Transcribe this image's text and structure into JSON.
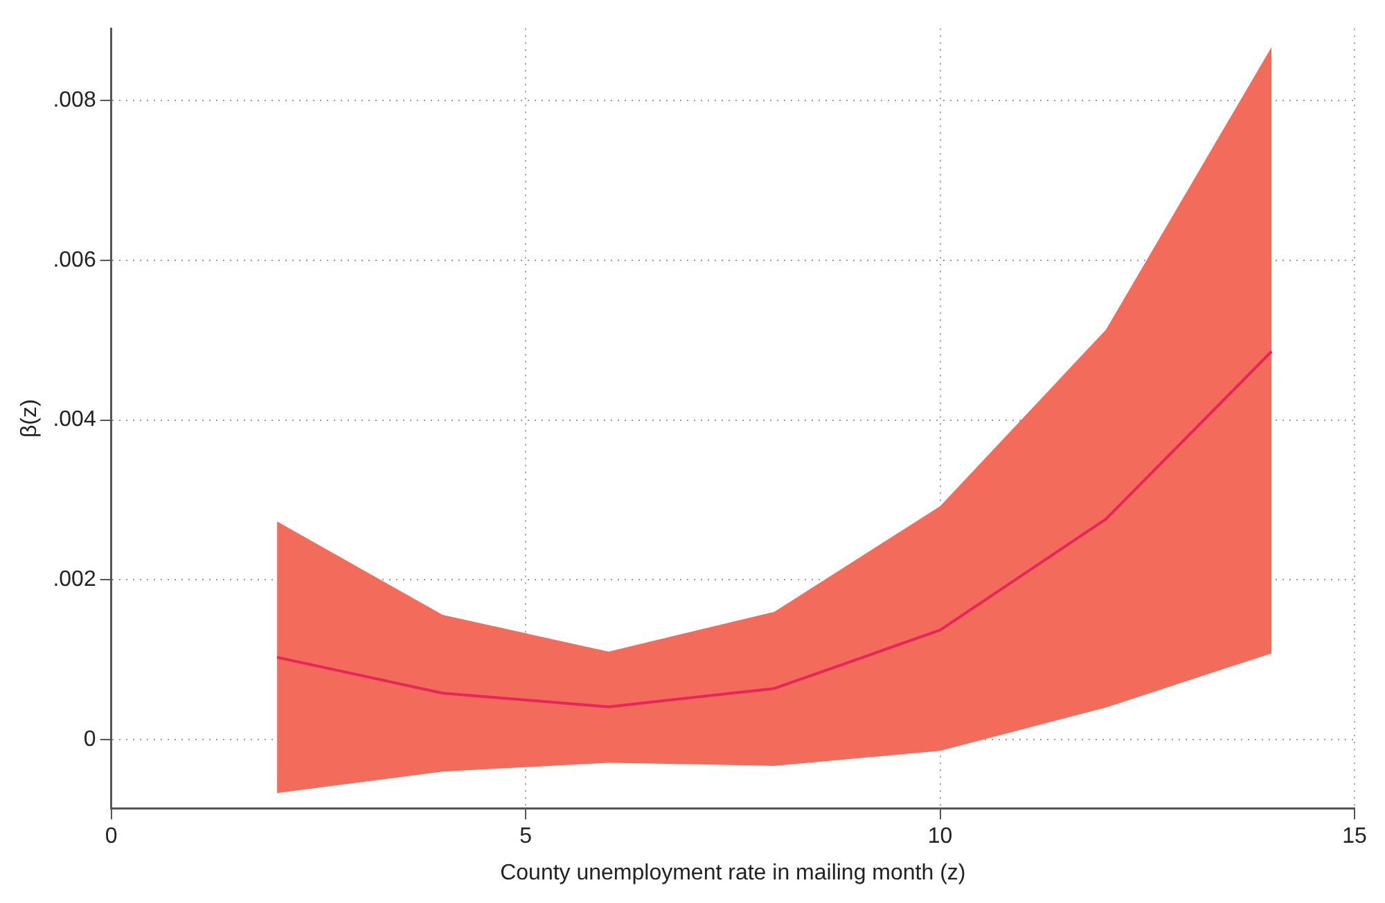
{
  "chart_data": {
    "type": "line",
    "xlabel": "County unemployment rate in mailing month (z)",
    "ylabel": "β(z)",
    "x": [
      2,
      4,
      6,
      8,
      10,
      12,
      14
    ],
    "series": [
      {
        "color": "#e8245a",
        "values": [
          0.00103,
          0.00058,
          0.00041,
          0.00064,
          0.00137,
          0.00276,
          0.00486
        ],
        "lower": [
          -0.00067,
          -0.0004,
          -0.00029,
          -0.00033,
          -0.00014,
          0.0004,
          0.00108
        ],
        "upper": [
          0.00273,
          0.00156,
          0.0011,
          0.0016,
          0.00292,
          0.00513,
          0.00867
        ]
      }
    ],
    "xlim": [
      0,
      15
    ],
    "xticks": [
      0,
      5,
      10,
      15
    ],
    "ylim": [
      -0.00086,
      0.0089
    ],
    "yticks": [
      0,
      {
        "value": 0.002,
        "label": ".002"
      },
      {
        "value": 0.004,
        "label": ".004"
      },
      {
        "value": 0.006,
        "label": ".006"
      },
      {
        "value": 0.008,
        "label": ".008"
      }
    ],
    "grid": true,
    "legend": false,
    "marker": "none",
    "line_style": "solid"
  }
}
